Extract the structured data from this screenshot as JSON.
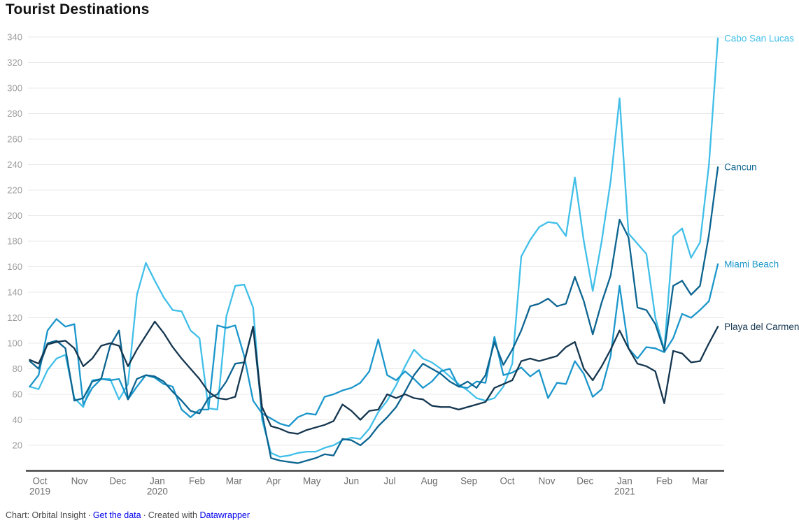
{
  "page": {
    "title": "Tourist Destinations"
  },
  "footer": {
    "source_label": "Chart: Orbital Insight",
    "separator": "·",
    "get_data_link": "Get the data",
    "created_with_label": "Created with",
    "datawrapper_link": "Datawrapper",
    "link_color": "#2193c9",
    "text_color": "#4a4a4a"
  },
  "chart_data": {
    "type": "line",
    "title": "Tourist Destinations",
    "grid": true,
    "legend_position": "line-end-labels",
    "x_axis": {
      "start_date": "2019-09-23",
      "step_days": 7,
      "months": [
        {
          "label": "Oct",
          "sub": "2019",
          "day": 0
        },
        {
          "label": "Nov",
          "day": 31
        },
        {
          "label": "Dec",
          "day": 61
        },
        {
          "label": "Jan",
          "sub": "2020",
          "day": 92
        },
        {
          "label": "Feb",
          "day": 123
        },
        {
          "label": "Mar",
          "day": 152
        },
        {
          "label": "Apr",
          "day": 183
        },
        {
          "label": "May",
          "day": 213
        },
        {
          "label": "Jun",
          "day": 244
        },
        {
          "label": "Jul",
          "day": 274
        },
        {
          "label": "Aug",
          "day": 305
        },
        {
          "label": "Sep",
          "day": 336
        },
        {
          "label": "Oct",
          "day": 366
        },
        {
          "label": "Nov",
          "day": 397
        },
        {
          "label": "Dec",
          "day": 427
        },
        {
          "label": "Jan",
          "sub": "2021",
          "day": 458
        },
        {
          "label": "Feb",
          "day": 489
        },
        {
          "label": "Mar",
          "day": 517
        }
      ]
    },
    "y_axis": {
      "min": 0,
      "max": 340,
      "tick_step": 20,
      "ticks": [
        20,
        40,
        60,
        80,
        100,
        120,
        140,
        160,
        180,
        200,
        220,
        240,
        260,
        280,
        300,
        320,
        340
      ]
    },
    "series": [
      {
        "name": "Cabo San Lucas",
        "color": "#41bfe9",
        "values": [
          66,
          64,
          79,
          88,
          91,
          57,
          50,
          71,
          72,
          72,
          56,
          68,
          138,
          163,
          149,
          136,
          126,
          125,
          110,
          104,
          49,
          48,
          121,
          145,
          146,
          128,
          40,
          14,
          11,
          12,
          14,
          15,
          15,
          18,
          20,
          24,
          26,
          25,
          33,
          46,
          55,
          67,
          82,
          95,
          88,
          85,
          80,
          74,
          68,
          63,
          57,
          55,
          57,
          66,
          84,
          168,
          181,
          191,
          195,
          194,
          184,
          230,
          180,
          141,
          180,
          227,
          292,
          186,
          178,
          170,
          120,
          95,
          184,
          190,
          167,
          179,
          240,
          339
        ]
      },
      {
        "name": "Miami Beach",
        "color": "#1b96cb",
        "values": [
          66,
          75,
          110,
          119,
          113,
          115,
          52,
          65,
          72,
          71,
          72,
          56,
          66,
          75,
          73,
          68,
          66,
          48,
          42,
          48,
          48,
          114,
          112,
          114,
          90,
          55,
          45,
          41,
          37,
          35,
          42,
          45,
          44,
          58,
          60,
          63,
          65,
          69,
          78,
          103,
          75,
          71,
          78,
          72,
          65,
          70,
          78,
          80,
          66,
          65,
          70,
          69,
          105,
          75,
          77,
          81,
          74,
          79,
          57,
          69,
          68,
          86,
          76,
          58,
          64,
          90,
          145,
          96,
          88,
          97,
          96,
          93,
          104,
          123,
          120,
          126,
          133,
          162
        ]
      },
      {
        "name": "Cancun",
        "color": "#0c6490",
        "values": [
          86,
          80,
          100,
          102,
          96,
          55,
          57,
          70,
          72,
          98,
          110,
          56,
          72,
          75,
          74,
          70,
          62,
          55,
          47,
          45,
          57,
          60,
          70,
          84,
          85,
          113,
          45,
          10,
          8,
          7,
          6,
          8,
          10,
          13,
          12,
          25,
          24,
          20,
          26,
          35,
          42,
          50,
          62,
          75,
          84,
          80,
          76,
          70,
          66,
          70,
          65,
          75,
          101,
          83,
          95,
          110,
          129,
          131,
          135,
          129,
          131,
          152,
          133,
          107,
          132,
          153,
          197,
          183,
          128,
          126,
          115,
          94,
          145,
          149,
          138,
          145,
          185,
          238
        ]
      },
      {
        "name": "Playa del Carmen",
        "color": "#15364f",
        "values": [
          87,
          84,
          99,
          101,
          102,
          96,
          82,
          88,
          98,
          100,
          98,
          82,
          95,
          106,
          117,
          108,
          97,
          88,
          80,
          72,
          62,
          57,
          56,
          58,
          85,
          113,
          50,
          35,
          33,
          30,
          29,
          32,
          34,
          36,
          39,
          52,
          47,
          40,
          47,
          48,
          60,
          57,
          60,
          57,
          56,
          51,
          50,
          50,
          48,
          50,
          52,
          54,
          65,
          68,
          71,
          86,
          88,
          86,
          88,
          90,
          97,
          101,
          80,
          71,
          82,
          95,
          110,
          96,
          84,
          82,
          78,
          53,
          94,
          92,
          85,
          86,
          100,
          113
        ]
      }
    ],
    "style": {
      "grid_color": "#e8e8e8",
      "baseline_color": "#424242",
      "y_label_color": "#9e9e9e",
      "x_label_color": "#6d6d6d",
      "line_width": 2.3
    }
  }
}
